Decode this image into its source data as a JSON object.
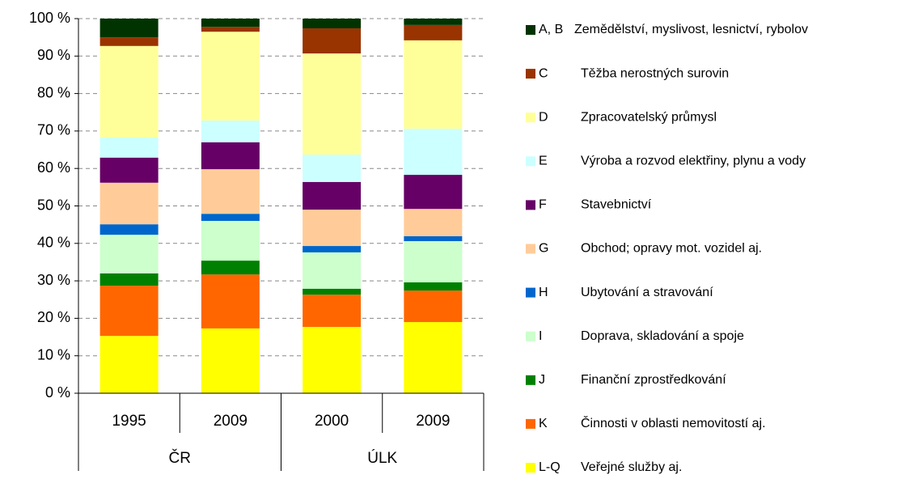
{
  "chart_data": {
    "type": "stacked_bar_100",
    "categories": [
      "1995",
      "2009",
      "2000",
      "2009"
    ],
    "groups": [
      {
        "label": "ČR",
        "span": 2
      },
      {
        "label": "ÚLK",
        "span": 2
      }
    ],
    "ylim": [
      0,
      100
    ],
    "yticks": [
      {
        "value": 0,
        "label": "0 %"
      },
      {
        "value": 10,
        "label": "10 %"
      },
      {
        "value": 20,
        "label": "20 %"
      },
      {
        "value": 30,
        "label": "30 %"
      },
      {
        "value": 40,
        "label": "40 %"
      },
      {
        "value": 50,
        "label": "50 %"
      },
      {
        "value": 60,
        "label": "60 %"
      },
      {
        "value": 70,
        "label": "70 %"
      },
      {
        "value": 80,
        "label": "80 %"
      },
      {
        "value": 90,
        "label": "90 %"
      },
      {
        "value": 100,
        "label": "100 %"
      }
    ],
    "grid": true,
    "legend": "right",
    "series": [
      {
        "code": "L-Q",
        "name": "Veřejné služby aj.",
        "color": "#ffff00",
        "values": [
          15.3,
          17.3,
          17.7,
          19.0
        ]
      },
      {
        "code": "K",
        "name": "Činnosti v oblasti nemovitostí aj.",
        "color": "#ff6600",
        "values": [
          13.4,
          14.4,
          8.6,
          8.4
        ]
      },
      {
        "code": "J",
        "name": "Finanční zprostředkování",
        "color": "#008000",
        "values": [
          3.3,
          3.7,
          1.6,
          2.2
        ]
      },
      {
        "code": "I",
        "name": "Doprava, skladování a spoje",
        "color": "#ccffcc",
        "values": [
          10.3,
          10.6,
          9.7,
          11.0
        ]
      },
      {
        "code": "H",
        "name": "Ubytování a stravování",
        "color": "#0066cc",
        "values": [
          2.8,
          1.9,
          1.7,
          1.3
        ]
      },
      {
        "code": "G",
        "name": "Obchod; opravy mot. vozidel aj.",
        "color": "#ffcc99",
        "values": [
          11.1,
          11.9,
          9.7,
          7.3
        ]
      },
      {
        "code": "F",
        "name": "Stavebnictví",
        "color": "#660066",
        "values": [
          6.7,
          7.2,
          7.4,
          9.1
        ]
      },
      {
        "code": "E",
        "name": "Výroba a rozvod elektřiny, plynu a vody",
        "color": "#ccffff",
        "values": [
          5.4,
          5.8,
          7.3,
          12.3
        ]
      },
      {
        "code": "D",
        "name": "Zpracovatelský průmysl",
        "color": "#ffff99",
        "values": [
          24.4,
          23.7,
          27.0,
          23.6
        ]
      },
      {
        "code": "C",
        "name": "Těžba nerostných surovin",
        "color": "#993300",
        "values": [
          2.3,
          1.3,
          6.7,
          4.1
        ]
      },
      {
        "code": "A, B",
        "name": "Zemědělství, myslivost, lesnictví, rybolov",
        "color": "#003300",
        "values": [
          5.0,
          2.2,
          2.6,
          1.7
        ]
      }
    ]
  }
}
